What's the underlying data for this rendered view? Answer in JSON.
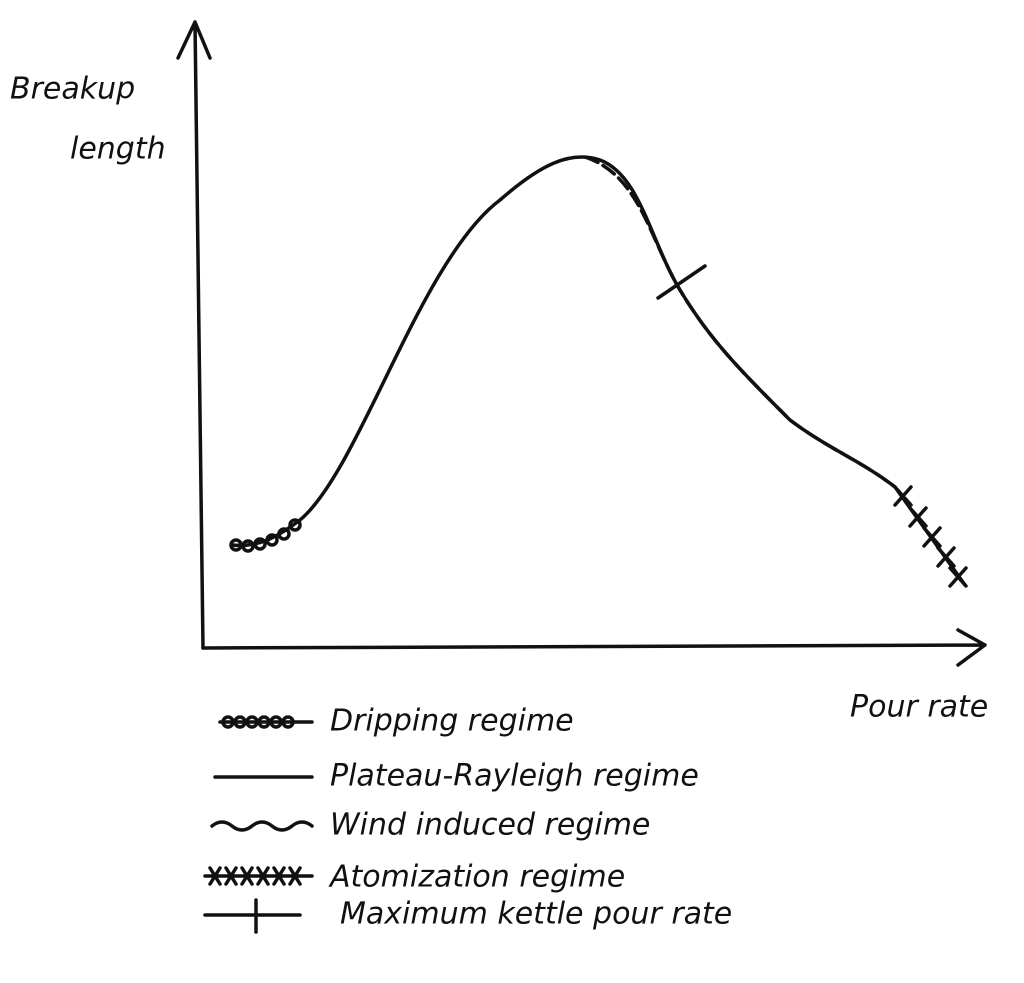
{
  "axes": {
    "y_label": [
      "Breakup",
      "length"
    ],
    "x_label": "Pour rate"
  },
  "legend": [
    {
      "label": "Dripping regime"
    },
    {
      "label": "Plateau-Rayleigh regime"
    },
    {
      "label": "Wind induced regime"
    },
    {
      "label": "Atomization regime"
    },
    {
      "label": "Maximum kettle pour rate"
    }
  ]
}
